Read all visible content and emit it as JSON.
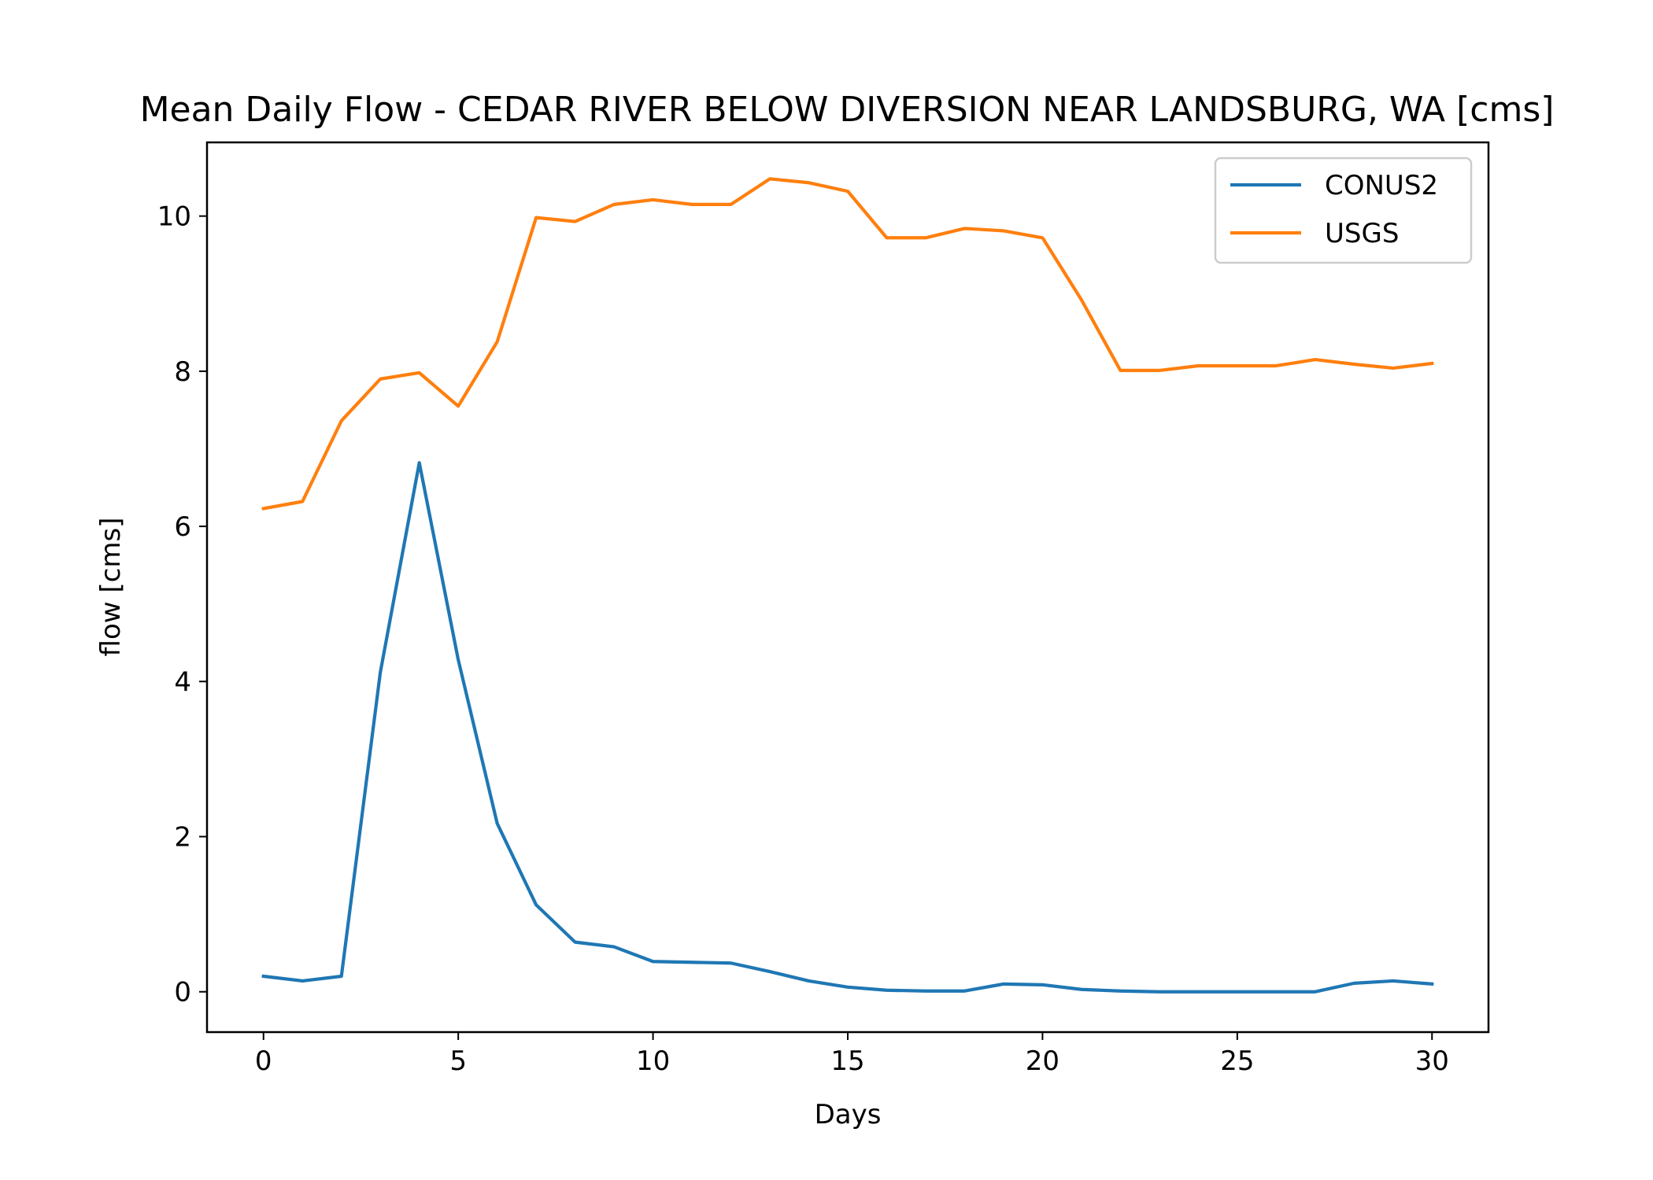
{
  "chart_data": {
    "type": "line",
    "title": "Mean Daily Flow - CEDAR RIVER BELOW DIVERSION NEAR LANDSBURG, WA [cms]",
    "xlabel": "Days",
    "ylabel": "flow [cms]",
    "xlim": [
      -1.45,
      31.45
    ],
    "ylim": [
      -0.52,
      10.95
    ],
    "xticks": [
      0,
      5,
      10,
      15,
      20,
      25,
      30
    ],
    "yticks": [
      0,
      2,
      4,
      6,
      8,
      10
    ],
    "grid": false,
    "legend_position": "top-right",
    "x": [
      0,
      1,
      2,
      3,
      4,
      5,
      6,
      7,
      8,
      9,
      10,
      11,
      12,
      13,
      14,
      15,
      16,
      17,
      18,
      19,
      20,
      21,
      22,
      23,
      24,
      25,
      26,
      27,
      28,
      29,
      30
    ],
    "series": [
      {
        "name": "CONUS2",
        "color": "#1f77b4",
        "values": [
          0.2,
          0.14,
          0.2,
          4.12,
          6.82,
          4.28,
          2.17,
          1.12,
          0.64,
          0.58,
          0.39,
          0.38,
          0.37,
          0.26,
          0.14,
          0.06,
          0.02,
          0.01,
          0.01,
          0.1,
          0.09,
          0.03,
          0.01,
          0.0,
          0.0,
          0.0,
          0.0,
          0.0,
          0.11,
          0.14,
          0.1
        ]
      },
      {
        "name": "USGS",
        "color": "#ff7f0e",
        "values": [
          6.23,
          6.32,
          7.36,
          7.9,
          7.98,
          7.55,
          8.38,
          9.98,
          9.93,
          10.15,
          10.21,
          10.15,
          10.15,
          10.48,
          10.43,
          10.32,
          9.72,
          9.72,
          9.84,
          9.81,
          9.72,
          8.92,
          8.01,
          8.01,
          8.07,
          8.07,
          8.07,
          8.15,
          8.09,
          8.04,
          8.1
        ]
      }
    ]
  }
}
